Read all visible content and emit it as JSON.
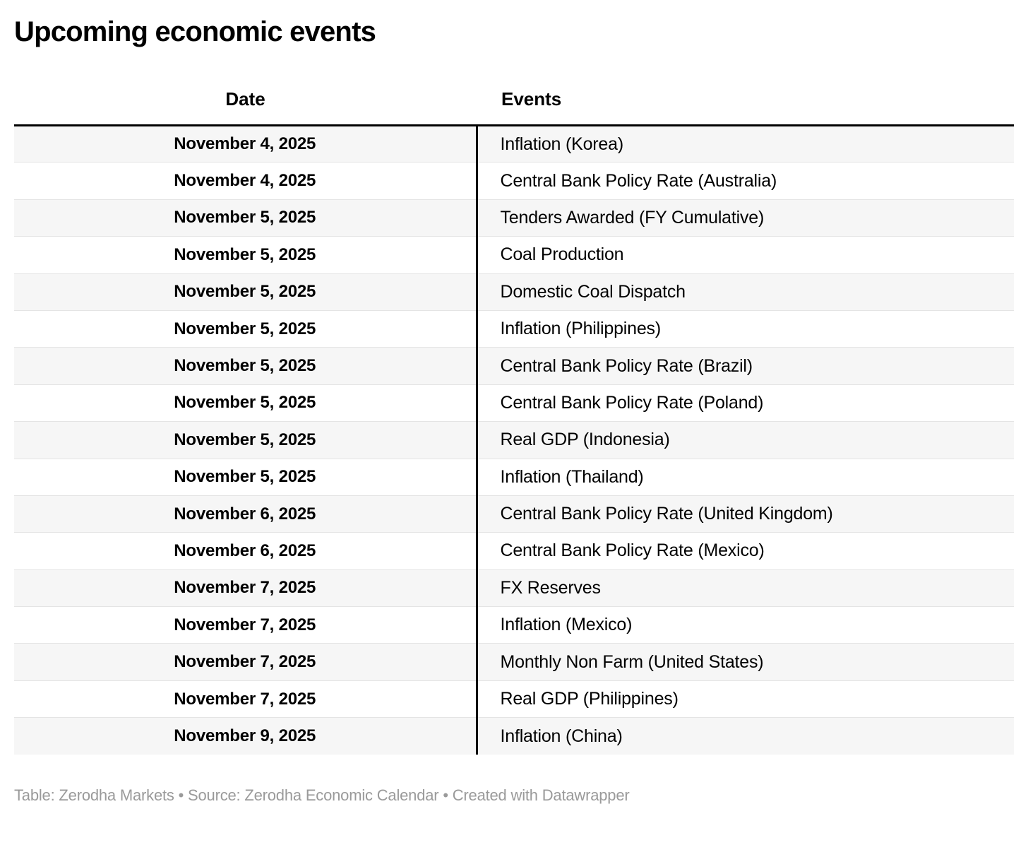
{
  "title": "Upcoming economic events",
  "chart_data": {
    "type": "table",
    "title": "Upcoming economic events",
    "columns": [
      "Date",
      "Events"
    ],
    "rows": [
      [
        "November 4, 2025",
        "Inflation (Korea)"
      ],
      [
        "November 4, 2025",
        "Central Bank Policy Rate (Australia)"
      ],
      [
        "November 5, 2025",
        "Tenders Awarded (FY Cumulative)"
      ],
      [
        "November 5, 2025",
        "Coal Production"
      ],
      [
        "November 5, 2025",
        "Domestic Coal Dispatch"
      ],
      [
        "November 5, 2025",
        "Inflation (Philippines)"
      ],
      [
        "November 5, 2025",
        "Central Bank Policy Rate (Brazil)"
      ],
      [
        "November 5, 2025",
        "Central Bank Policy Rate (Poland)"
      ],
      [
        "November 5, 2025",
        "Real GDP (Indonesia)"
      ],
      [
        "November 5, 2025",
        "Inflation (Thailand)"
      ],
      [
        "November 6, 2025",
        "Central Bank Policy Rate (United Kingdom)"
      ],
      [
        "November 6, 2025",
        "Central Bank Policy Rate (Mexico)"
      ],
      [
        "November 7, 2025",
        "FX Reserves"
      ],
      [
        "November 7, 2025",
        "Inflation (Mexico)"
      ],
      [
        "November 7, 2025",
        "Monthly Non Farm (United States)"
      ],
      [
        "November 7, 2025",
        "Real GDP (Philippines)"
      ],
      [
        "November 9, 2025",
        "Inflation (China)"
      ]
    ],
    "layout_hints": {
      "date_column_align": "center",
      "events_column_align": "left",
      "date_column_bold": true,
      "alternating_row_shading": true,
      "column_divider": "vertical black rule between columns",
      "header_rule": "thick black rule under header",
      "grid": "thin light gray rules between rows"
    }
  },
  "footer": {
    "text": "Table: Zerodha Markets • Source: Zerodha Economic Calendar • Created with Datawrapper"
  },
  "colors": {
    "background": "#ffffff",
    "text": "#000000",
    "row_alt_background": "#f6f6f6",
    "row_border": "#e4e4e4",
    "rule_black": "#000000",
    "footer_text": "#9a9a9a"
  }
}
